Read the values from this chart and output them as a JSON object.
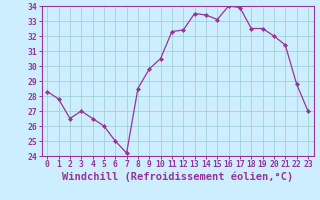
{
  "x": [
    0,
    1,
    2,
    3,
    4,
    5,
    6,
    7,
    8,
    9,
    10,
    11,
    12,
    13,
    14,
    15,
    16,
    17,
    18,
    19,
    20,
    21,
    22,
    23
  ],
  "y": [
    28.3,
    27.8,
    26.5,
    27.0,
    26.5,
    26.0,
    25.0,
    24.2,
    28.5,
    29.8,
    30.5,
    32.3,
    32.4,
    33.5,
    33.4,
    33.1,
    34.0,
    33.9,
    32.5,
    32.5,
    32.0,
    31.4,
    28.8,
    27.0
  ],
  "line_color": "#993399",
  "marker_color": "#993399",
  "bg_color": "#cceeff",
  "grid_color": "#99cccc",
  "xlabel": "Windchill (Refroidissement éolien,°C)",
  "xlabel_color": "#993399",
  "ylim": [
    24,
    34
  ],
  "yticks": [
    24,
    25,
    26,
    27,
    28,
    29,
    30,
    31,
    32,
    33,
    34
  ],
  "xticks": [
    0,
    1,
    2,
    3,
    4,
    5,
    6,
    7,
    8,
    9,
    10,
    11,
    12,
    13,
    14,
    15,
    16,
    17,
    18,
    19,
    20,
    21,
    22,
    23
  ],
  "tick_color": "#993399",
  "tick_label_fontsize": 5.8,
  "xlabel_fontsize": 7.5,
  "linewidth": 0.9,
  "markersize": 2.0
}
